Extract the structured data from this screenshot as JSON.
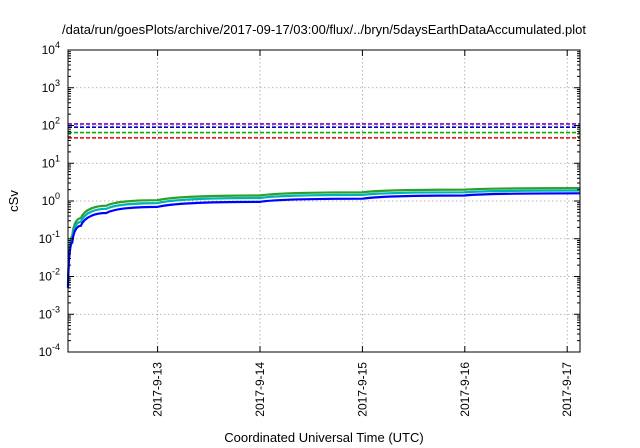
{
  "chart_data": {
    "type": "line",
    "title": "/data/run/goesPlots/archive/2017-09-17/03:00/flux/../bryn/5daysEarthDataAccumulated.plot",
    "xlabel": "Coordinated Universal Time (UTC)",
    "ylabel": "cSv",
    "y_scale": "log",
    "ylim_exponents": [
      -4,
      4
    ],
    "y_ticks": [
      {
        "base": "10",
        "exp": "-4",
        "value": 0.0001
      },
      {
        "base": "10",
        "exp": "-3",
        "value": 0.001
      },
      {
        "base": "10",
        "exp": "-2",
        "value": 0.01
      },
      {
        "base": "10",
        "exp": "-1",
        "value": 0.1
      },
      {
        "base": "10",
        "exp": "0",
        "value": 1
      },
      {
        "base": "10",
        "exp": "1",
        "value": 10
      },
      {
        "base": "10",
        "exp": "2",
        "value": 100
      },
      {
        "base": "10",
        "exp": "3",
        "value": 1000
      },
      {
        "base": "10",
        "exp": "4",
        "value": 10000
      }
    ],
    "xlim": [
      "2017-09-12 03:00",
      "2017-09-17 03:00"
    ],
    "x_ticks": [
      {
        "label": "2017-9-13",
        "value": "2017-09-13 00:00"
      },
      {
        "label": "2017-9-14",
        "value": "2017-09-14 00:00"
      },
      {
        "label": "2017-9-15",
        "value": "2017-09-15 00:00"
      },
      {
        "label": "2017-9-16",
        "value": "2017-09-16 00:00"
      },
      {
        "label": "2017-9-17",
        "value": "2017-09-17 00:00"
      }
    ],
    "grid": true,
    "reference_lines": [
      {
        "value": 110,
        "color": "#8000c0"
      },
      {
        "value": 90,
        "color": "#0000c0"
      },
      {
        "value": 65,
        "color": "#00b000"
      },
      {
        "value": 47,
        "color": "#e00000"
      }
    ],
    "series": [
      {
        "color": "#2ca02c",
        "x": [
          "2017-09-12 03:00",
          "2017-09-12 04:00",
          "2017-09-12 06:00",
          "2017-09-12 12:00",
          "2017-09-13 00:00",
          "2017-09-14 00:00",
          "2017-09-15 00:00",
          "2017-09-16 00:00",
          "2017-09-17 03:00"
        ],
        "values": [
          0.006,
          0.12,
          0.35,
          0.75,
          1.05,
          1.4,
          1.7,
          2.0,
          2.2
        ]
      },
      {
        "color": "#00b4b4",
        "x": [
          "2017-09-12 03:00",
          "2017-09-12 04:00",
          "2017-09-12 06:00",
          "2017-09-12 12:00",
          "2017-09-13 00:00",
          "2017-09-14 00:00",
          "2017-09-15 00:00",
          "2017-09-16 00:00",
          "2017-09-17 03:00"
        ],
        "values": [
          0.006,
          0.1,
          0.28,
          0.62,
          0.88,
          1.2,
          1.45,
          1.7,
          1.9
        ]
      },
      {
        "color": "#0000ff",
        "x": [
          "2017-09-12 03:00",
          "2017-09-12 04:00",
          "2017-09-12 06:00",
          "2017-09-12 12:00",
          "2017-09-13 00:00",
          "2017-09-14 00:00",
          "2017-09-15 00:00",
          "2017-09-16 00:00",
          "2017-09-17 03:00"
        ],
        "values": [
          0.005,
          0.08,
          0.22,
          0.48,
          0.7,
          0.95,
          1.15,
          1.4,
          1.6
        ]
      }
    ]
  }
}
